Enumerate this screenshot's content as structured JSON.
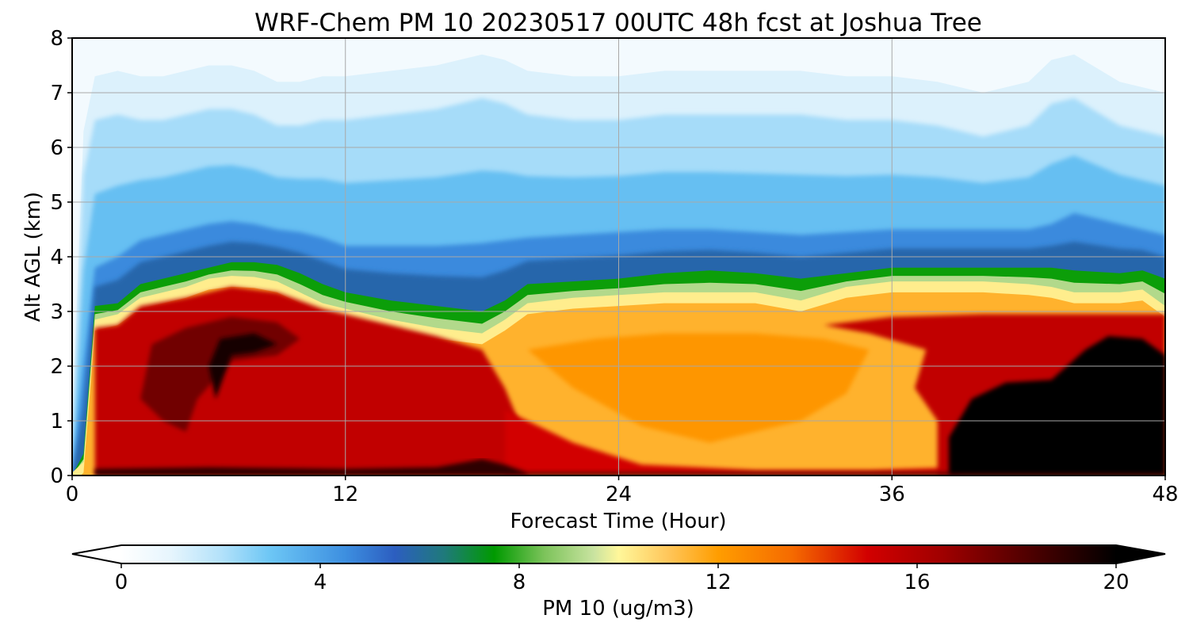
{
  "chart_data": {
    "type": "heatmap",
    "title": "WRF-Chem PM 10  20230517 00UTC 48h fcst at Joshua Tree",
    "xlabel": "Forecast Time (Hour)",
    "ylabel": "Alt AGL (km)",
    "xlim": [
      0,
      48
    ],
    "ylim": [
      0,
      8
    ],
    "xticks": [
      0,
      12,
      24,
      36,
      48
    ],
    "yticks": [
      0,
      1,
      2,
      3,
      4,
      5,
      6,
      7,
      8
    ],
    "grid": true,
    "colorbar": {
      "label": "PM 10  (ug/m3)",
      "ticks": [
        0,
        4,
        8,
        12,
        16,
        20
      ],
      "range": [
        0,
        20
      ],
      "extend": "both",
      "stops": [
        {
          "value": 0,
          "color": "#ffffff"
        },
        {
          "value": 1,
          "color": "#e6f5fd"
        },
        {
          "value": 2,
          "color": "#b4e2fa"
        },
        {
          "value": 3,
          "color": "#6cc6f5"
        },
        {
          "value": 4.5,
          "color": "#3d8fe0"
        },
        {
          "value": 5.5,
          "color": "#2c5ec0"
        },
        {
          "value": 6.5,
          "color": "#1f7a7a"
        },
        {
          "value": 7.5,
          "color": "#009a00"
        },
        {
          "value": 8.5,
          "color": "#7cc35a"
        },
        {
          "value": 9.5,
          "color": "#c9e3a0"
        },
        {
          "value": 10,
          "color": "#fff79a"
        },
        {
          "value": 11,
          "color": "#ffc65a"
        },
        {
          "value": 12,
          "color": "#ff9d00"
        },
        {
          "value": 13.5,
          "color": "#f56a00"
        },
        {
          "value": 15,
          "color": "#d20000"
        },
        {
          "value": 16.5,
          "color": "#a00000"
        },
        {
          "value": 18,
          "color": "#5a0000"
        },
        {
          "value": 20,
          "color": "#000000"
        }
      ]
    },
    "level_times_hours": [
      0,
      0.5,
      1,
      2,
      3,
      4,
      5,
      6,
      7,
      8,
      9,
      10,
      11,
      12,
      14,
      16,
      18,
      19,
      20,
      22,
      24,
      26,
      28,
      30,
      32,
      34,
      36,
      38,
      39,
      40,
      42,
      43,
      44,
      46,
      47,
      48
    ],
    "layers_km": [
      {
        "name": "plume_base_value",
        "note": "concentration near surface"
      },
      {
        "name": "yellow_transition_altitude",
        "values": [
          0,
          0.2,
          2.8,
          2.9,
          3.2,
          3.3,
          3.4,
          3.55,
          3.6,
          3.58,
          3.5,
          3.3,
          3.1,
          3.0,
          2.8,
          2.65,
          2.55,
          2.8,
          3.1,
          3.2,
          3.25,
          3.3,
          3.3,
          3.3,
          3.15,
          3.4,
          3.5,
          3.5,
          3.5,
          3.5,
          3.45,
          3.4,
          3.3,
          3.3,
          3.35,
          3.05
        ]
      },
      {
        "name": "green_top_altitude",
        "values": [
          0,
          0.4,
          3.1,
          3.15,
          3.5,
          3.6,
          3.7,
          3.8,
          3.9,
          3.9,
          3.85,
          3.7,
          3.5,
          3.35,
          3.2,
          3.1,
          3.0,
          3.2,
          3.5,
          3.55,
          3.6,
          3.7,
          3.75,
          3.7,
          3.6,
          3.7,
          3.8,
          3.8,
          3.8,
          3.8,
          3.8,
          3.8,
          3.75,
          3.7,
          3.75,
          3.6
        ]
      },
      {
        "name": "dark_blue_top_altitude",
        "values": [
          0,
          2.0,
          3.8,
          4.0,
          4.3,
          4.4,
          4.5,
          4.6,
          4.65,
          4.6,
          4.5,
          4.45,
          4.35,
          4.2,
          4.2,
          4.2,
          4.25,
          4.3,
          4.35,
          4.4,
          4.45,
          4.5,
          4.5,
          4.45,
          4.4,
          4.45,
          4.5,
          4.5,
          4.5,
          4.5,
          4.5,
          4.6,
          4.8,
          4.6,
          4.5,
          4.4
        ]
      },
      {
        "name": "light_blue_top_altitude",
        "values": [
          0,
          5.5,
          6.5,
          6.6,
          6.5,
          6.5,
          6.6,
          6.7,
          6.7,
          6.6,
          6.4,
          6.4,
          6.5,
          6.5,
          6.6,
          6.7,
          6.9,
          6.8,
          6.6,
          6.5,
          6.5,
          6.6,
          6.6,
          6.6,
          6.6,
          6.5,
          6.5,
          6.4,
          6.3,
          6.2,
          6.4,
          6.8,
          6.9,
          6.4,
          6.3,
          6.2
        ]
      }
    ]
  }
}
